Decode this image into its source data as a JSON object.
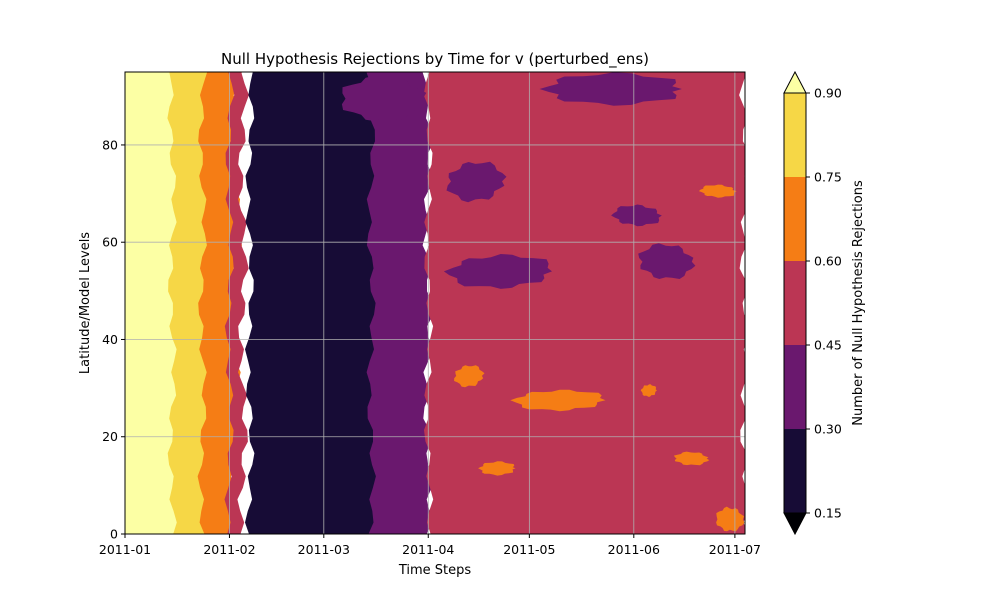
{
  "chart_data": {
    "type": "heatmap",
    "plot_style": "filled-contour",
    "title": "Null Hypothesis Rejections by Time for v (perturbed_ens)",
    "xlabel": "Time Steps",
    "ylabel": "Latitude/Model Levels",
    "x_range": [
      "2011-01-01",
      "2011-07-04"
    ],
    "x_ticks": [
      "2011-01",
      "2011-02",
      "2011-03",
      "2011-04",
      "2011-05",
      "2011-06",
      "2011-07"
    ],
    "x_tick_dates": [
      "2011-01-01",
      "2011-02-01",
      "2011-03-01",
      "2011-04-01",
      "2011-05-01",
      "2011-06-01",
      "2011-07-01"
    ],
    "ylim": [
      0,
      95
    ],
    "y_ticks": [
      0,
      20,
      40,
      60,
      80
    ],
    "grid": true,
    "colorbar": {
      "label": "Number of Null Hypothesis Rejections",
      "levels": [
        0.15,
        0.3,
        0.45,
        0.6,
        0.75,
        0.9
      ],
      "tick_labels": [
        "0.15",
        "0.30",
        "0.45",
        "0.60",
        "0.75",
        "0.90"
      ],
      "extend": "both",
      "colormap": "inferno",
      "colors": [
        "#170c36",
        "#6a186e",
        "#bb3654",
        "#f57d15",
        "#f6d746",
        "#fcffa4"
      ],
      "under_color": "#000004",
      "over_color": "#fcffa4"
    },
    "bands": [
      {
        "range": "above 0.90",
        "color": "#fcffa4",
        "x_from": "2011-01-01",
        "x_to": "2011-01-20"
      },
      {
        "range": "0.75-0.90",
        "color": "#f6d746",
        "x_from": "2011-01-15",
        "x_to": "2011-01-28"
      },
      {
        "range": "0.60-0.75",
        "color": "#f57d15",
        "x_from": "2011-01-24",
        "x_to": "2011-02-03"
      },
      {
        "range": "0.45-0.60",
        "color": "#bb3654",
        "x_from": "2011-02-01",
        "x_to": "2011-02-05"
      },
      {
        "range": "0.15-0.30",
        "color": "#170c36",
        "x_from": "2011-02-07",
        "x_to": "2011-03-18"
      },
      {
        "range": "0.30-0.45",
        "color": "#6a186e",
        "x_from": "2011-03-15",
        "x_to": "2011-04-01"
      },
      {
        "range": "0.45-0.60",
        "color": "#bb3654",
        "x_from": "2011-04-01",
        "x_to": "2011-07-04"
      }
    ],
    "patches": [
      {
        "range": "0.30-0.45",
        "color": "#6a186e",
        "x_from": "2011-04-05",
        "x_to": "2011-05-10",
        "y_from": 50,
        "y_to": 58
      },
      {
        "range": "0.30-0.45",
        "color": "#6a186e",
        "x_from": "2011-04-05",
        "x_to": "2011-04-25",
        "y_from": 68,
        "y_to": 77
      },
      {
        "range": "0.30-0.45",
        "color": "#6a186e",
        "x_from": "2011-05-01",
        "x_to": "2011-06-20",
        "y_from": 88,
        "y_to": 95
      },
      {
        "range": "0.30-0.45",
        "color": "#6a186e",
        "x_from": "2011-06-01",
        "x_to": "2011-06-20",
        "y_from": 52,
        "y_to": 60
      },
      {
        "range": "0.30-0.45",
        "color": "#6a186e",
        "x_from": "2011-05-25",
        "x_to": "2011-06-10",
        "y_from": 63,
        "y_to": 68
      },
      {
        "range": "0.30-0.45",
        "color": "#6a186e",
        "x_from": "2011-03-05",
        "x_to": "2011-04-01",
        "y_from": 84,
        "y_to": 95
      },
      {
        "range": "0.60-0.75",
        "color": "#f57d15",
        "x_from": "2011-04-25",
        "x_to": "2011-05-25",
        "y_from": 25,
        "y_to": 30
      },
      {
        "range": "0.60-0.75",
        "color": "#f57d15",
        "x_from": "2011-04-08",
        "x_to": "2011-04-18",
        "y_from": 30,
        "y_to": 35
      },
      {
        "range": "0.60-0.75",
        "color": "#f57d15",
        "x_from": "2011-04-15",
        "x_to": "2011-04-28",
        "y_from": 12,
        "y_to": 15
      },
      {
        "range": "0.60-0.75",
        "color": "#f57d15",
        "x_from": "2011-06-12",
        "x_to": "2011-06-24",
        "y_from": 14,
        "y_to": 17
      },
      {
        "range": "0.60-0.75",
        "color": "#f57d15",
        "x_from": "2011-06-20",
        "x_to": "2011-07-02",
        "y_from": 69,
        "y_to": 72
      },
      {
        "range": "0.60-0.75",
        "color": "#f57d15",
        "x_from": "2011-06-25",
        "x_to": "2011-07-04",
        "y_from": 0,
        "y_to": 6
      },
      {
        "range": "0.60-0.75",
        "color": "#f57d15",
        "x_from": "2011-06-03",
        "x_to": "2011-06-08",
        "y_from": 28,
        "y_to": 31
      }
    ]
  }
}
